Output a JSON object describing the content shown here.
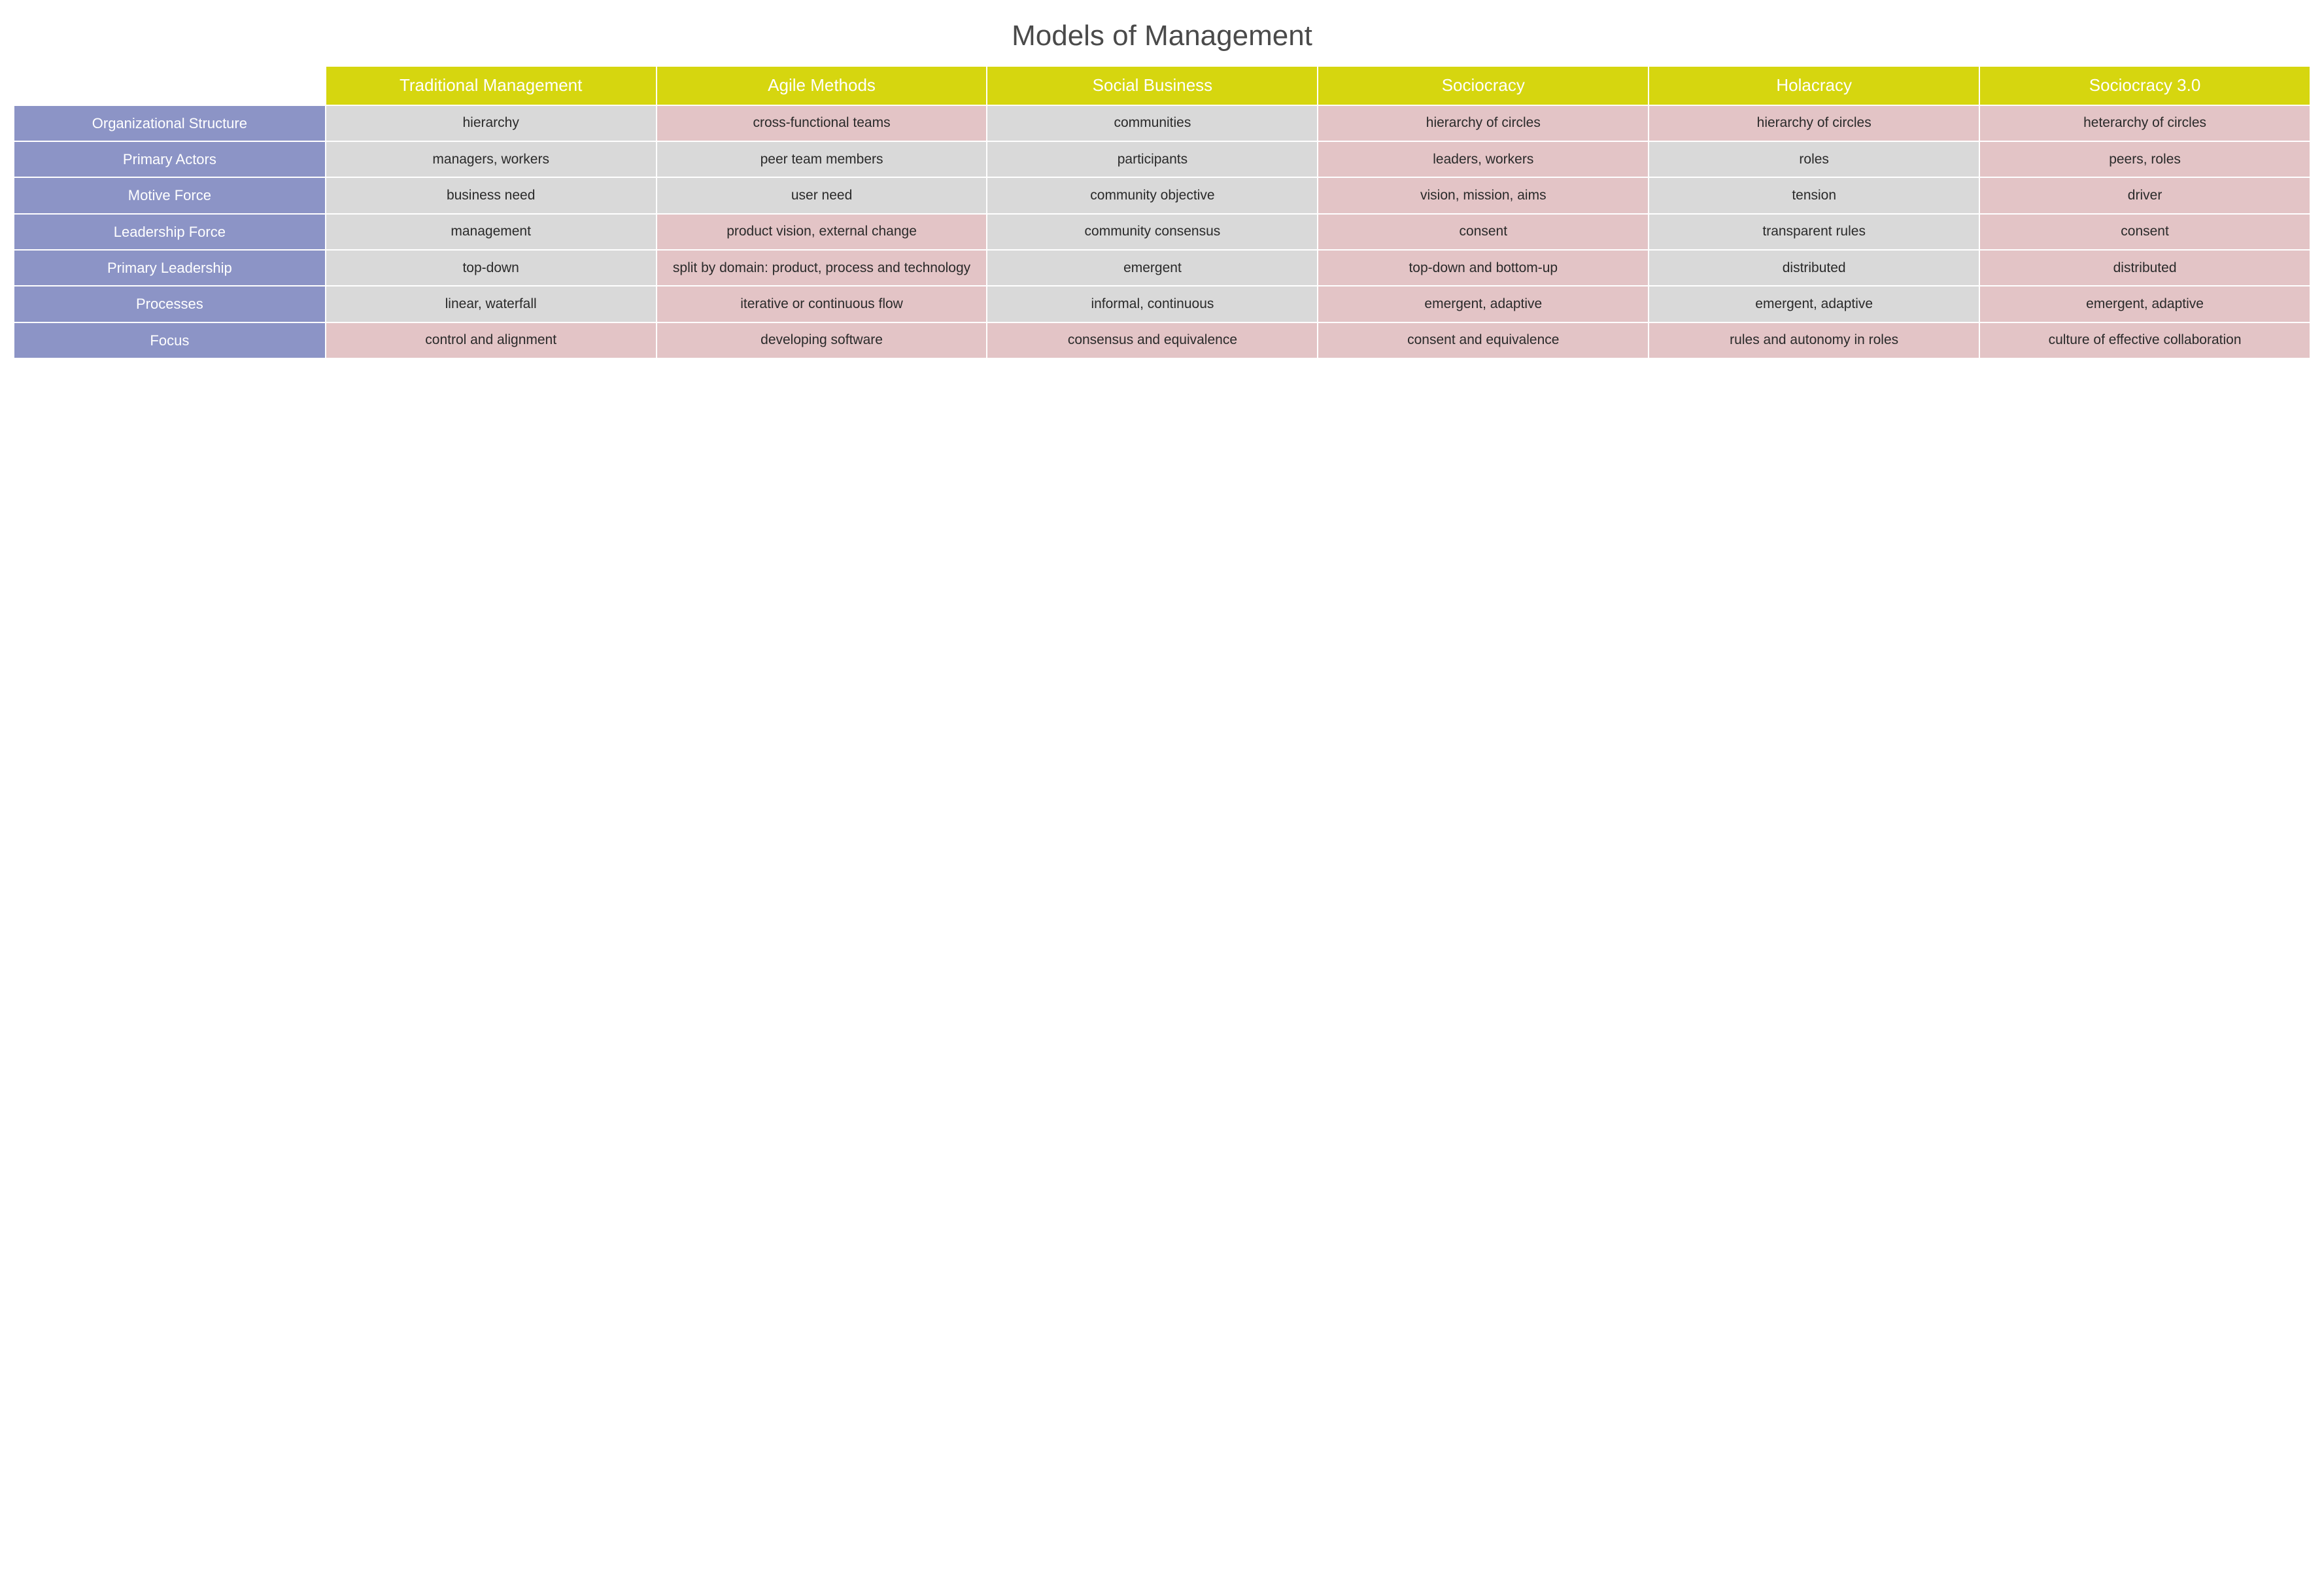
{
  "title": "Models of Management",
  "colors": {
    "col_header_bg": "#d6d60f",
    "col_header_fg": "#ffffff",
    "row_header_bg": "#8c94c6",
    "row_header_fg": "#ffffff",
    "cell_gray": "#d9d9d9",
    "cell_pink": "#e3c4c6",
    "title_color": "#4a4a4a",
    "cell_text": "#2a2a2a",
    "background": "#ffffff"
  },
  "typography": {
    "title_fontsize": 44,
    "col_header_fontsize": 26,
    "row_header_fontsize": 22,
    "cell_fontsize": 21,
    "font_family": "Futura / Century Gothic"
  },
  "columns": [
    "Traditional Management",
    "Agile Methods",
    "Social Business",
    "Sociocracy",
    "Holacracy",
    "Sociocracy 3.0"
  ],
  "row_headers": [
    "Organizational Structure",
    "Primary Actors",
    "Motive Force",
    "Leadership Force",
    "Primary Leadership",
    "Processes",
    "Focus"
  ],
  "cells": [
    [
      {
        "text": "hierarchy",
        "shade": "gray"
      },
      {
        "text": "cross-functional teams",
        "shade": "pink"
      },
      {
        "text": "communities",
        "shade": "gray"
      },
      {
        "text": "hierarchy of circles",
        "shade": "pink"
      },
      {
        "text": "hierarchy of circles",
        "shade": "pink"
      },
      {
        "text": "heterarchy of circles",
        "shade": "pink"
      }
    ],
    [
      {
        "text": "managers, workers",
        "shade": "gray"
      },
      {
        "text": "peer team members",
        "shade": "gray"
      },
      {
        "text": "participants",
        "shade": "gray"
      },
      {
        "text": "leaders, workers",
        "shade": "pink"
      },
      {
        "text": "roles",
        "shade": "gray"
      },
      {
        "text": "peers, roles",
        "shade": "pink"
      }
    ],
    [
      {
        "text": "business need",
        "shade": "gray"
      },
      {
        "text": "user need",
        "shade": "gray"
      },
      {
        "text": "community objective",
        "shade": "gray"
      },
      {
        "text": "vision, mission, aims",
        "shade": "pink"
      },
      {
        "text": "tension",
        "shade": "gray"
      },
      {
        "text": "driver",
        "shade": "pink"
      }
    ],
    [
      {
        "text": "management",
        "shade": "gray"
      },
      {
        "text": "product vision, external change",
        "shade": "pink"
      },
      {
        "text": "community consensus",
        "shade": "gray"
      },
      {
        "text": "consent",
        "shade": "pink"
      },
      {
        "text": "transparent rules",
        "shade": "gray"
      },
      {
        "text": "consent",
        "shade": "pink"
      }
    ],
    [
      {
        "text": "top-down",
        "shade": "gray"
      },
      {
        "text": "split by domain: product, process and technology",
        "shade": "pink"
      },
      {
        "text": "emergent",
        "shade": "gray"
      },
      {
        "text": "top-down and bottom-up",
        "shade": "pink"
      },
      {
        "text": "distributed",
        "shade": "gray"
      },
      {
        "text": "distributed",
        "shade": "pink"
      }
    ],
    [
      {
        "text": "linear, waterfall",
        "shade": "gray"
      },
      {
        "text": "iterative or continuous flow",
        "shade": "pink"
      },
      {
        "text": "informal, continuous",
        "shade": "gray"
      },
      {
        "text": "emergent, adaptive",
        "shade": "pink"
      },
      {
        "text": "emergent, adaptive",
        "shade": "gray"
      },
      {
        "text": "emergent, adaptive",
        "shade": "pink"
      }
    ],
    [
      {
        "text": "control and alignment",
        "shade": "pink"
      },
      {
        "text": "developing software",
        "shade": "pink"
      },
      {
        "text": "consensus and equivalence",
        "shade": "pink"
      },
      {
        "text": "consent and equivalence",
        "shade": "pink"
      },
      {
        "text": "rules and autonomy in roles",
        "shade": "pink"
      },
      {
        "text": "culture of effective collaboration",
        "shade": "pink"
      }
    ]
  ]
}
